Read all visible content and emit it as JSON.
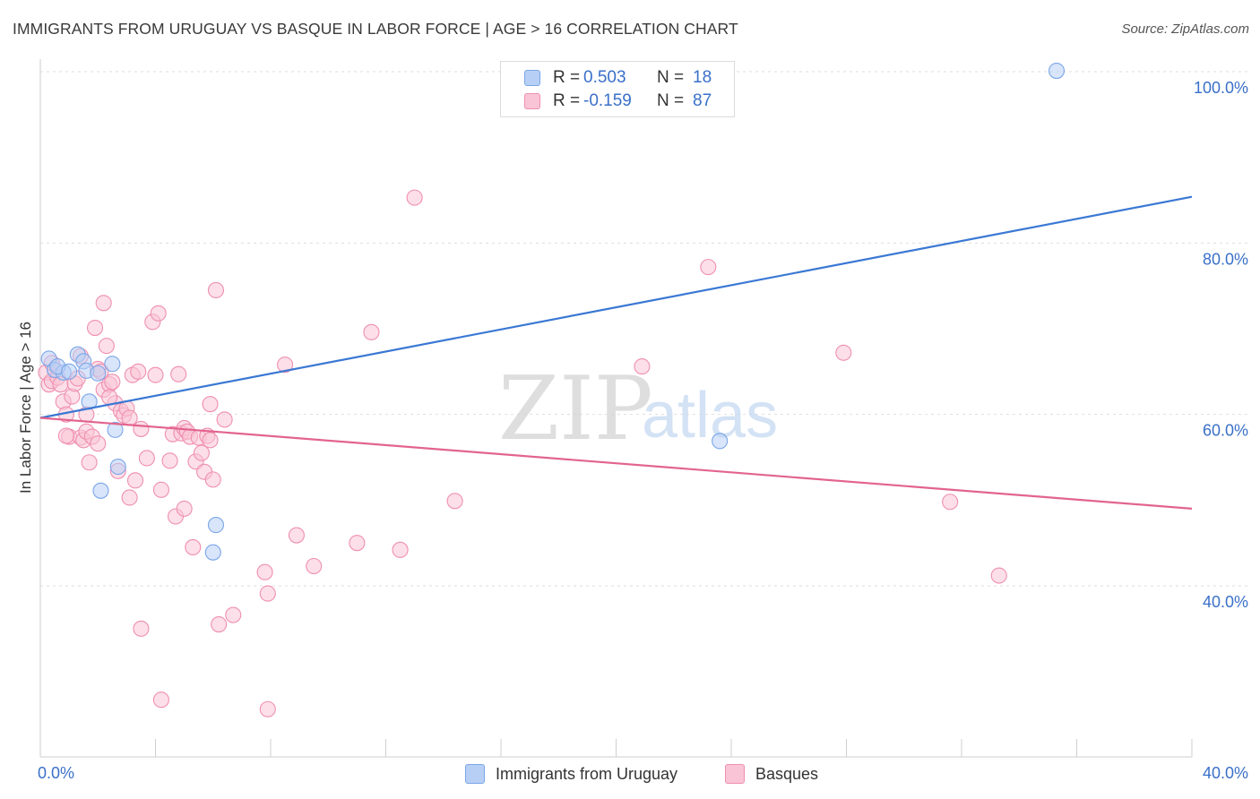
{
  "header": {
    "title": "IMMIGRANTS FROM URUGUAY VS BASQUE IN LABOR FORCE | AGE > 16 CORRELATION CHART",
    "source": "Source: ZipAtlas.com"
  },
  "watermark": {
    "zip": "ZIP",
    "atlas": "atlas"
  },
  "legend": {
    "rows": [
      {
        "r_label": "R =",
        "r_value": "0.503",
        "n_label": "N =",
        "n_value": "18",
        "color": "#7ba6e8",
        "fill": "#b8cff5"
      },
      {
        "r_label": "R =",
        "r_value": "-0.159",
        "n_label": "N =",
        "n_value": "87",
        "color": "#ef8fb0",
        "fill": "#f9c4d6"
      }
    ]
  },
  "bottom_legend": [
    {
      "label": "Immigrants from Uruguay",
      "color": "#7ba6e8",
      "fill": "#b8cff5"
    },
    {
      "label": "Basques",
      "color": "#ef8fb0",
      "fill": "#f9c4d6"
    }
  ],
  "chart_data": {
    "type": "scatter",
    "title": "IMMIGRANTS FROM URUGUAY VS BASQUE IN LABOR FORCE | AGE > 16 CORRELATION CHART",
    "xlabel": "",
    "ylabel": "In Labor Force | Age > 16",
    "xlim": [
      0,
      40
    ],
    "ylim": [
      20,
      104
    ],
    "x_tick_labels": [
      {
        "value": 0,
        "label": "0.0%"
      },
      {
        "value": 40,
        "label": "40.0%"
      }
    ],
    "y_tick_labels": [
      {
        "value": 40,
        "label": "40.0%"
      },
      {
        "value": 60,
        "label": "60.0%"
      },
      {
        "value": 80,
        "label": "80.0%"
      },
      {
        "value": 100,
        "label": "100.0%"
      }
    ],
    "x_minor_ticks": [
      4,
      8,
      12,
      16,
      20,
      24,
      28,
      32,
      36,
      40
    ],
    "grid": true,
    "series": [
      {
        "name": "Immigrants from Uruguay",
        "color": "#3a78d4",
        "fill": "#b8cff5",
        "stroke": "#7ba6e8",
        "trend": {
          "x": [
            0,
            40
          ],
          "y": [
            59.6,
            85.4
          ]
        },
        "points": [
          [
            0.3,
            66.5
          ],
          [
            0.5,
            65.2
          ],
          [
            0.8,
            64.9
          ],
          [
            1.3,
            67.0
          ],
          [
            1.5,
            66.2
          ],
          [
            1.6,
            65.1
          ],
          [
            2.0,
            64.8
          ],
          [
            2.5,
            65.9
          ],
          [
            1.7,
            61.5
          ],
          [
            2.6,
            58.2
          ],
          [
            2.7,
            53.9
          ],
          [
            2.1,
            51.1
          ],
          [
            6.1,
            47.1
          ],
          [
            6.0,
            43.9
          ],
          [
            23.6,
            56.9
          ],
          [
            35.3,
            100.1
          ],
          [
            0.6,
            65.6
          ],
          [
            1.0,
            65.0
          ]
        ]
      },
      {
        "name": "Basques",
        "color": "#e2648e",
        "fill": "#f9c4d6",
        "stroke": "#ef8fb0",
        "trend": {
          "x": [
            0,
            40
          ],
          "y": [
            59.6,
            49.0
          ]
        },
        "points": [
          [
            0.2,
            64.9
          ],
          [
            0.3,
            63.5
          ],
          [
            0.4,
            63.9
          ],
          [
            0.5,
            65.2
          ],
          [
            0.6,
            64.3
          ],
          [
            0.7,
            63.5
          ],
          [
            0.8,
            61.5
          ],
          [
            0.9,
            60.0
          ],
          [
            1.0,
            57.4
          ],
          [
            1.1,
            62.1
          ],
          [
            1.2,
            63.6
          ],
          [
            1.3,
            64.2
          ],
          [
            1.4,
            57.3
          ],
          [
            1.5,
            57.0
          ],
          [
            1.6,
            58.0
          ],
          [
            1.7,
            54.4
          ],
          [
            1.8,
            57.4
          ],
          [
            1.9,
            70.1
          ],
          [
            2.0,
            65.3
          ],
          [
            2.1,
            65.0
          ],
          [
            2.2,
            62.9
          ],
          [
            2.3,
            68.0
          ],
          [
            2.4,
            63.5
          ],
          [
            2.5,
            63.8
          ],
          [
            2.6,
            61.3
          ],
          [
            2.7,
            53.4
          ],
          [
            2.8,
            60.4
          ],
          [
            2.9,
            59.9
          ],
          [
            3.0,
            60.7
          ],
          [
            3.1,
            50.3
          ],
          [
            3.2,
            64.6
          ],
          [
            3.3,
            52.3
          ],
          [
            3.4,
            65.0
          ],
          [
            3.5,
            58.3
          ],
          [
            3.7,
            54.9
          ],
          [
            3.9,
            70.8
          ],
          [
            4.0,
            64.6
          ],
          [
            4.1,
            71.8
          ],
          [
            4.2,
            51.2
          ],
          [
            4.5,
            54.6
          ],
          [
            4.6,
            57.7
          ],
          [
            4.7,
            48.1
          ],
          [
            4.8,
            64.7
          ],
          [
            4.9,
            57.8
          ],
          [
            5.0,
            58.4
          ],
          [
            5.1,
            58.0
          ],
          [
            5.2,
            57.4
          ],
          [
            5.3,
            44.5
          ],
          [
            5.4,
            54.5
          ],
          [
            5.5,
            57.3
          ],
          [
            5.6,
            55.5
          ],
          [
            5.7,
            53.3
          ],
          [
            5.8,
            57.5
          ],
          [
            5.9,
            61.2
          ],
          [
            6.0,
            52.4
          ],
          [
            6.1,
            74.5
          ],
          [
            6.4,
            59.4
          ],
          [
            6.2,
            35.5
          ],
          [
            6.7,
            36.6
          ],
          [
            7.8,
            41.6
          ],
          [
            7.9,
            39.1
          ],
          [
            8.5,
            65.8
          ],
          [
            8.9,
            45.9
          ],
          [
            9.5,
            42.3
          ],
          [
            11.0,
            45.0
          ],
          [
            11.5,
            69.6
          ],
          [
            12.5,
            44.2
          ],
          [
            13.0,
            85.3
          ],
          [
            14.4,
            49.9
          ],
          [
            20.9,
            65.6
          ],
          [
            23.2,
            77.2
          ],
          [
            27.9,
            67.2
          ],
          [
            31.6,
            49.8
          ],
          [
            33.3,
            41.2
          ],
          [
            3.5,
            35.0
          ],
          [
            4.2,
            26.7
          ],
          [
            7.9,
            25.6
          ],
          [
            2.2,
            73.0
          ],
          [
            0.9,
            57.5
          ],
          [
            1.4,
            66.8
          ],
          [
            2.0,
            56.6
          ],
          [
            3.1,
            59.6
          ],
          [
            5.0,
            49.0
          ],
          [
            1.6,
            60.0
          ],
          [
            0.4,
            66.0
          ],
          [
            2.4,
            62.0
          ],
          [
            5.9,
            57.0
          ]
        ]
      }
    ]
  }
}
